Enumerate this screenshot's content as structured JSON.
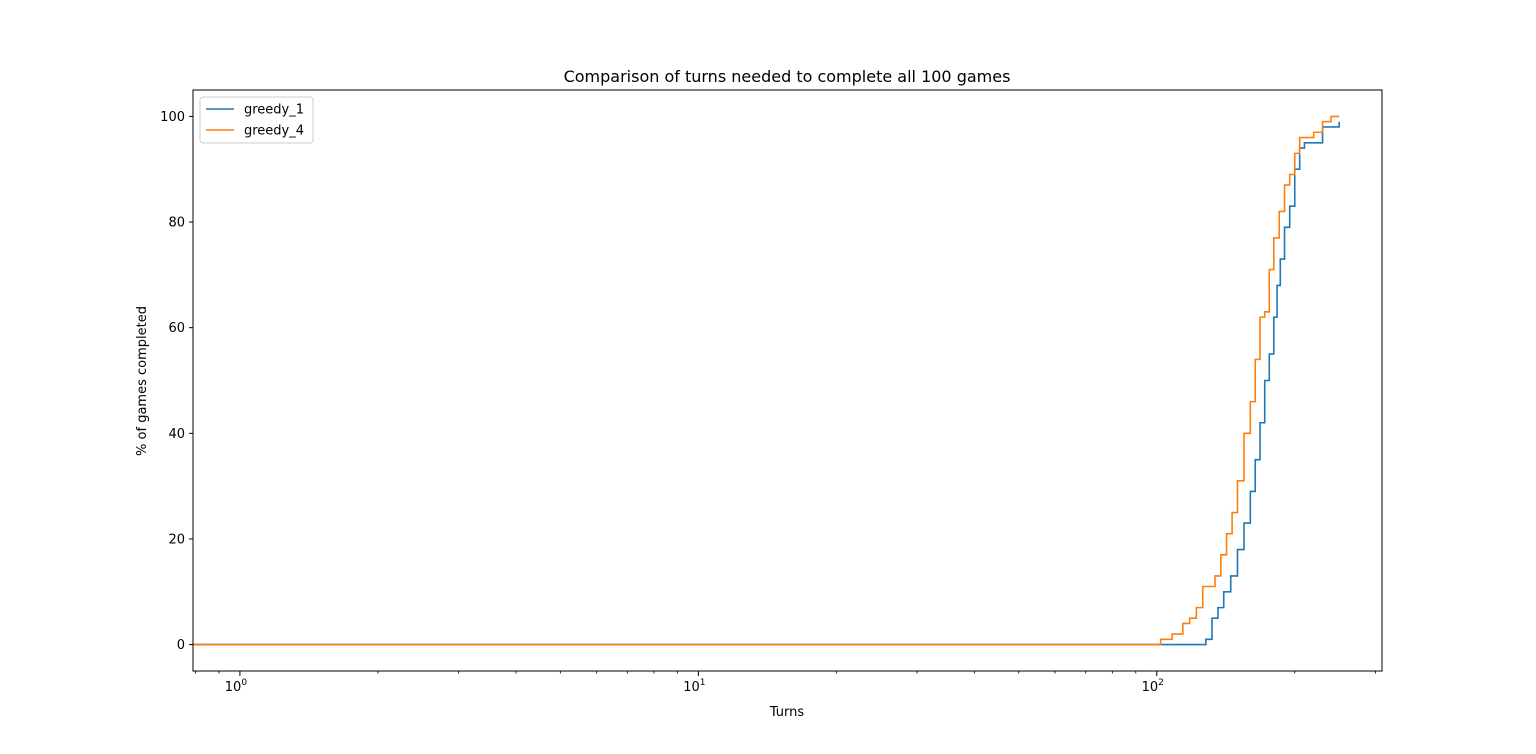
{
  "chart_data": {
    "type": "line",
    "title": "Comparison of turns needed to complete all 100 games",
    "xlabel": "Turns",
    "ylabel": "% of games completed",
    "xscale": "log",
    "xlim": [
      0.79,
      310
    ],
    "ylim": [
      -5,
      105
    ],
    "xticks": [
      {
        "value": 1,
        "base": "10",
        "exp": "0"
      },
      {
        "value": 10,
        "base": "10",
        "exp": "1"
      },
      {
        "value": 100,
        "base": "10",
        "exp": "2"
      }
    ],
    "yticks": [
      0,
      20,
      40,
      60,
      80,
      100
    ],
    "grid": false,
    "legend": "top-left",
    "colors": {
      "greedy_1": "#1f77b4",
      "greedy_4": "#ff7f0e"
    },
    "series": [
      {
        "name": "greedy_1",
        "x": [
          0.79,
          100,
          124,
          128,
          132,
          136,
          140,
          145,
          150,
          155,
          160,
          164,
          168,
          172,
          176,
          180,
          183,
          186,
          190,
          195,
          200,
          205,
          210,
          220,
          230,
          240,
          250
        ],
        "y": [
          0,
          0,
          0,
          1,
          5,
          7,
          10,
          13,
          18,
          23,
          29,
          35,
          42,
          50,
          55,
          62,
          68,
          73,
          79,
          83,
          90,
          94,
          95,
          95,
          98,
          98,
          99
        ]
      },
      {
        "name": "greedy_4",
        "x": [
          0.79,
          100,
          102,
          108,
          114,
          118,
          122,
          126,
          130,
          134,
          138,
          142,
          146,
          150,
          155,
          160,
          164,
          168,
          172,
          176,
          180,
          185,
          190,
          195,
          200,
          205,
          210,
          220,
          230,
          240,
          250
        ],
        "y": [
          0,
          0,
          1,
          2,
          4,
          5,
          7,
          11,
          11,
          13,
          17,
          21,
          25,
          31,
          40,
          46,
          54,
          62,
          63,
          71,
          77,
          82,
          87,
          89,
          93,
          96,
          96,
          97,
          99,
          100,
          100
        ]
      }
    ]
  }
}
